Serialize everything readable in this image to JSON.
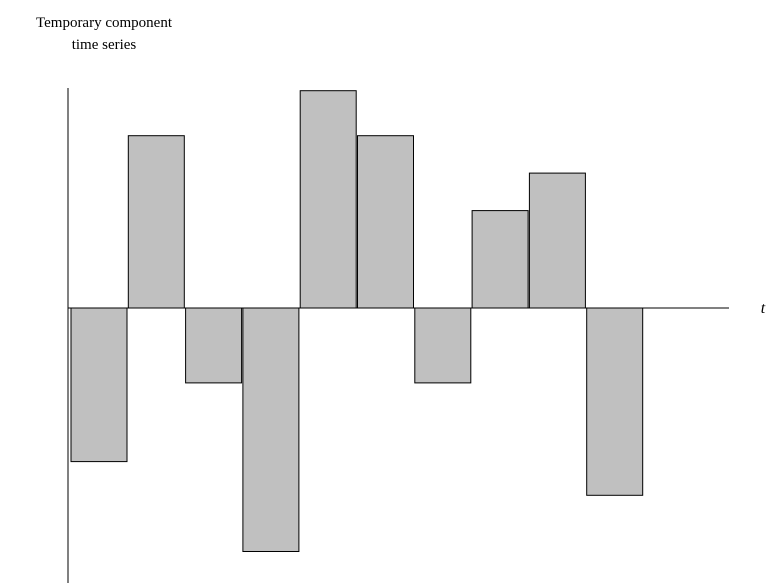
{
  "chart_data": {
    "type": "bar",
    "ylabel": [
      "Temporary component",
      "time series"
    ],
    "xlabel": "t",
    "values": [
      -2.05,
      2.3,
      -1.0,
      -3.25,
      2.9,
      2.3,
      -1.0,
      1.3,
      1.8,
      -2.5
    ],
    "ylim": [
      -3.4,
      2.9
    ],
    "grid": false,
    "legend": "none",
    "colors": {
      "bar_fill": "#c0c0c0",
      "bar_stroke": "#000000",
      "axis": "#000000"
    }
  }
}
